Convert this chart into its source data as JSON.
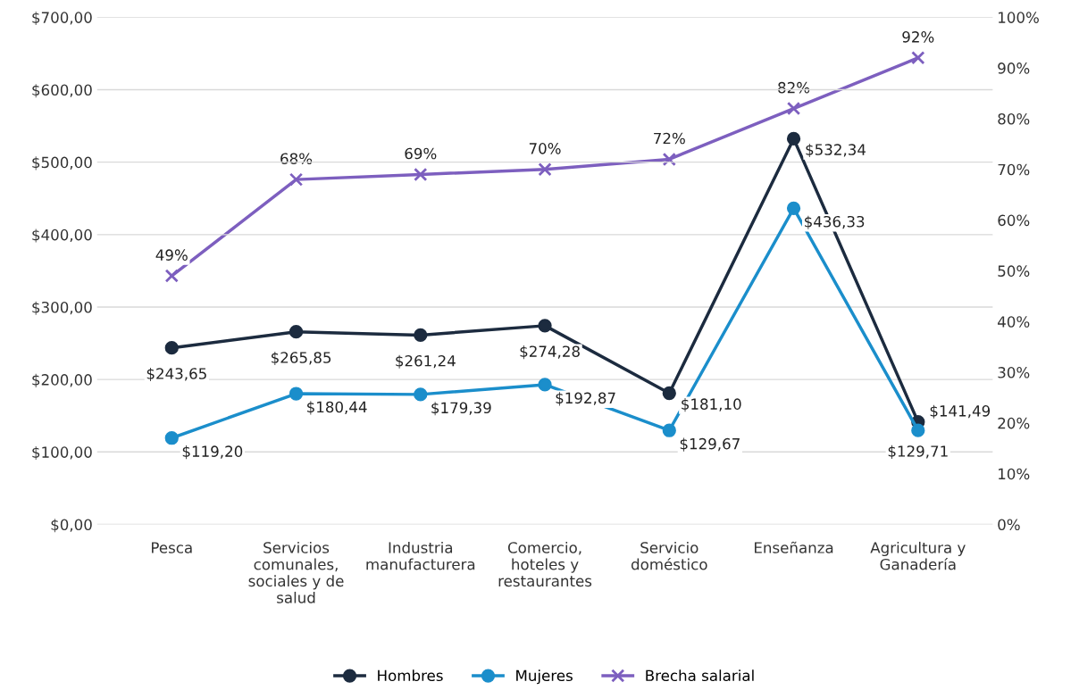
{
  "chart_data": {
    "type": "line",
    "categories": [
      "Pesca",
      "Servicios\ncomunales,\nsociales y de\nsalud",
      "Industria\nmanufacturera",
      "Comercio,\nhoteles y\nrestaurantes",
      "Servicio\ndoméstico",
      "Enseñanza",
      "Agricultura y\nGanadería"
    ],
    "series": [
      {
        "name": "Hombres",
        "color": "#1c2b3f",
        "marker": "circle",
        "values": [
          243.65,
          265.85,
          261.24,
          274.28,
          181.1,
          532.34,
          141.49
        ],
        "value_labels": [
          "$243,65",
          "$265,85",
          "$261,24",
          "$274,28",
          "$181,10",
          "$532,34",
          "$141,49"
        ]
      },
      {
        "name": "Mujeres",
        "color": "#1b8ecb",
        "marker": "circle",
        "values": [
          119.2,
          180.44,
          179.39,
          192.87,
          129.67,
          436.33,
          129.71
        ],
        "value_labels": [
          "$119,20",
          "$180,44",
          "$179,39",
          "$192,87",
          "$129,67",
          "$436,33",
          "$129,71"
        ]
      },
      {
        "name": "Brecha salarial",
        "color": "#7d5fbf",
        "marker": "cross",
        "axis": "y2",
        "values": [
          49,
          68,
          69,
          70,
          72,
          82,
          92
        ],
        "value_labels": [
          "49%",
          "68%",
          "69%",
          "70%",
          "72%",
          "82%",
          "92%"
        ]
      }
    ],
    "ylim": [
      0,
      700
    ],
    "yticks": [
      {
        "value": 0,
        "label": "$0,00"
      },
      {
        "value": 100,
        "label": "$100,00"
      },
      {
        "value": 200,
        "label": "$200,00"
      },
      {
        "value": 300,
        "label": "$300,00"
      },
      {
        "value": 400,
        "label": "$400,00"
      },
      {
        "value": 500,
        "label": "$500,00"
      },
      {
        "value": 600,
        "label": "$600,00"
      },
      {
        "value": 700,
        "label": "$700,00"
      }
    ],
    "y2lim": [
      0,
      100
    ],
    "y2ticks": [
      {
        "value": 0,
        "label": "0%"
      },
      {
        "value": 10,
        "label": "10%"
      },
      {
        "value": 20,
        "label": "20%"
      },
      {
        "value": 30,
        "label": "30%"
      },
      {
        "value": 40,
        "label": "40%"
      },
      {
        "value": 50,
        "label": "50%"
      },
      {
        "value": 60,
        "label": "60%"
      },
      {
        "value": 70,
        "label": "70%"
      },
      {
        "value": 80,
        "label": "80%"
      },
      {
        "value": 90,
        "label": "90%"
      },
      {
        "value": 100,
        "label": "100%"
      }
    ],
    "grid": "y",
    "legend": "bottom"
  }
}
